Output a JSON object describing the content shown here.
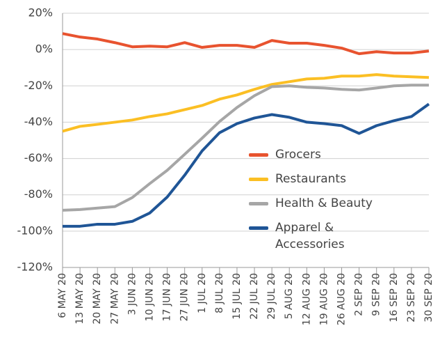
{
  "chart_data": {
    "type": "line",
    "categories": [
      "6 MAY 20",
      "13 MAY 20",
      "20 MAY 20",
      "27 MAY 20",
      "3 JUN 20",
      "10 JUN 20",
      "17 JUN 20",
      "27 JUN 20",
      "1 JUL 20",
      "8 JUL 20",
      "15 JUL 20",
      "22 JUL 20",
      "29 JUL 20",
      "5 AUG 20",
      "12 AUG 20",
      "19 AUG 20",
      "26 AUG 20",
      "2 SEP 20",
      "9 SEP 20",
      "16 SEP 20",
      "23 SEP 20",
      "30 SEP 20"
    ],
    "series": [
      {
        "name": "Grocers",
        "color": "#e8532f",
        "values": [
          8.8,
          6.9,
          5.8,
          3.8,
          1.5,
          1.9,
          1.5,
          3.8,
          1.2,
          2.3,
          2.3,
          1.2,
          5,
          3.5,
          3.5,
          2.3,
          0.8,
          -2.3,
          -1.2,
          -1.9,
          -1.9,
          -0.8
        ]
      },
      {
        "name": "Restaurants",
        "color": "#fbbf24",
        "values": [
          -45,
          -42.3,
          -41.2,
          -40,
          -38.8,
          -36.9,
          -35.4,
          -33.1,
          -30.8,
          -27.3,
          -25,
          -21.9,
          -19.2,
          -17.7,
          -16.2,
          -15.8,
          -14.6,
          -14.6,
          -13.8,
          -14.6,
          -15,
          -15.4
        ]
      },
      {
        "name": "Health & Beauty",
        "color": "#a6a6a6",
        "values": [
          -88.5,
          -88.1,
          -87.3,
          -86.5,
          -81.5,
          -73.8,
          -66.5,
          -57.7,
          -48.8,
          -39.6,
          -31.9,
          -25.4,
          -20.4,
          -20,
          -20.8,
          -21.2,
          -21.9,
          -22.3,
          -21.2,
          -20,
          -19.6,
          -19.6
        ]
      },
      {
        "name": "Apparel & Accessories",
        "color": "#1f5596",
        "values": [
          -97.3,
          -97.3,
          -96.2,
          -96.2,
          -94.6,
          -90,
          -81.2,
          -69.2,
          -55.8,
          -45.8,
          -40.8,
          -37.7,
          -35.8,
          -37.3,
          -40,
          -40.8,
          -41.9,
          -46.2,
          -41.9,
          -39.2,
          -36.9,
          -30
        ]
      }
    ],
    "ylim": [
      -120,
      20
    ],
    "yticks": [
      {
        "value": 20,
        "label": "20%"
      },
      {
        "value": 0,
        "label": "0%"
      },
      {
        "value": -20,
        "label": "-20%"
      },
      {
        "value": -40,
        "label": "-40%"
      },
      {
        "value": -60,
        "label": "-60%"
      },
      {
        "value": -80,
        "label": "-80%"
      },
      {
        "value": -100,
        "label": "-100%"
      },
      {
        "value": -120,
        "label": "-120%"
      }
    ],
    "grid": true
  }
}
